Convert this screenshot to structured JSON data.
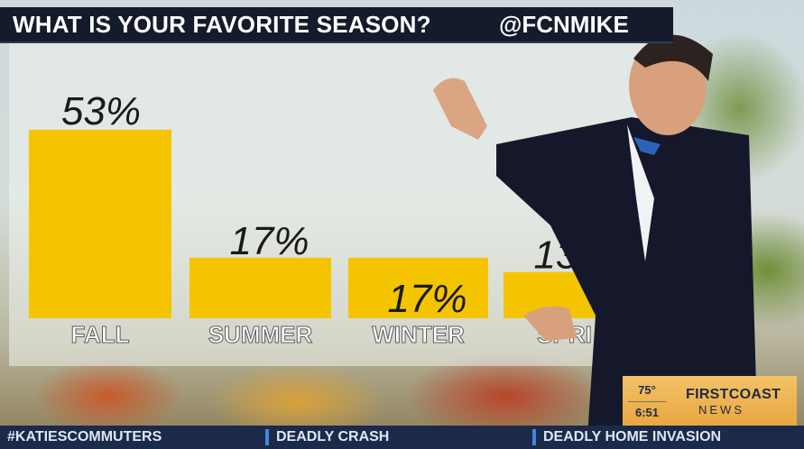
{
  "header": {
    "title": "WHAT IS YOUR FAVORITE SEASON?",
    "handle": "@FCNMIKE"
  },
  "chart_data": {
    "type": "bar",
    "title": "WHAT IS YOUR FAVORITE SEASON?",
    "categories": [
      "FALL",
      "SUMMER",
      "WINTER",
      "SPRI"
    ],
    "values": [
      53,
      17,
      17,
      13
    ],
    "data_labels": [
      "53%",
      "17%",
      "17%",
      "13%"
    ],
    "ylim": [
      0,
      55
    ],
    "bar_color": "#f5c400",
    "grid": false,
    "xlabel": "",
    "ylabel": ""
  },
  "weather": {
    "temp": "75°",
    "time": "6:51"
  },
  "station": {
    "name": "FIRSTCOAST",
    "sub": "NEWS"
  },
  "ticker": {
    "items": [
      "#KATIESCOMMUTERS",
      "DEADLY CRASH",
      "DEADLY HOME INVASION"
    ]
  }
}
